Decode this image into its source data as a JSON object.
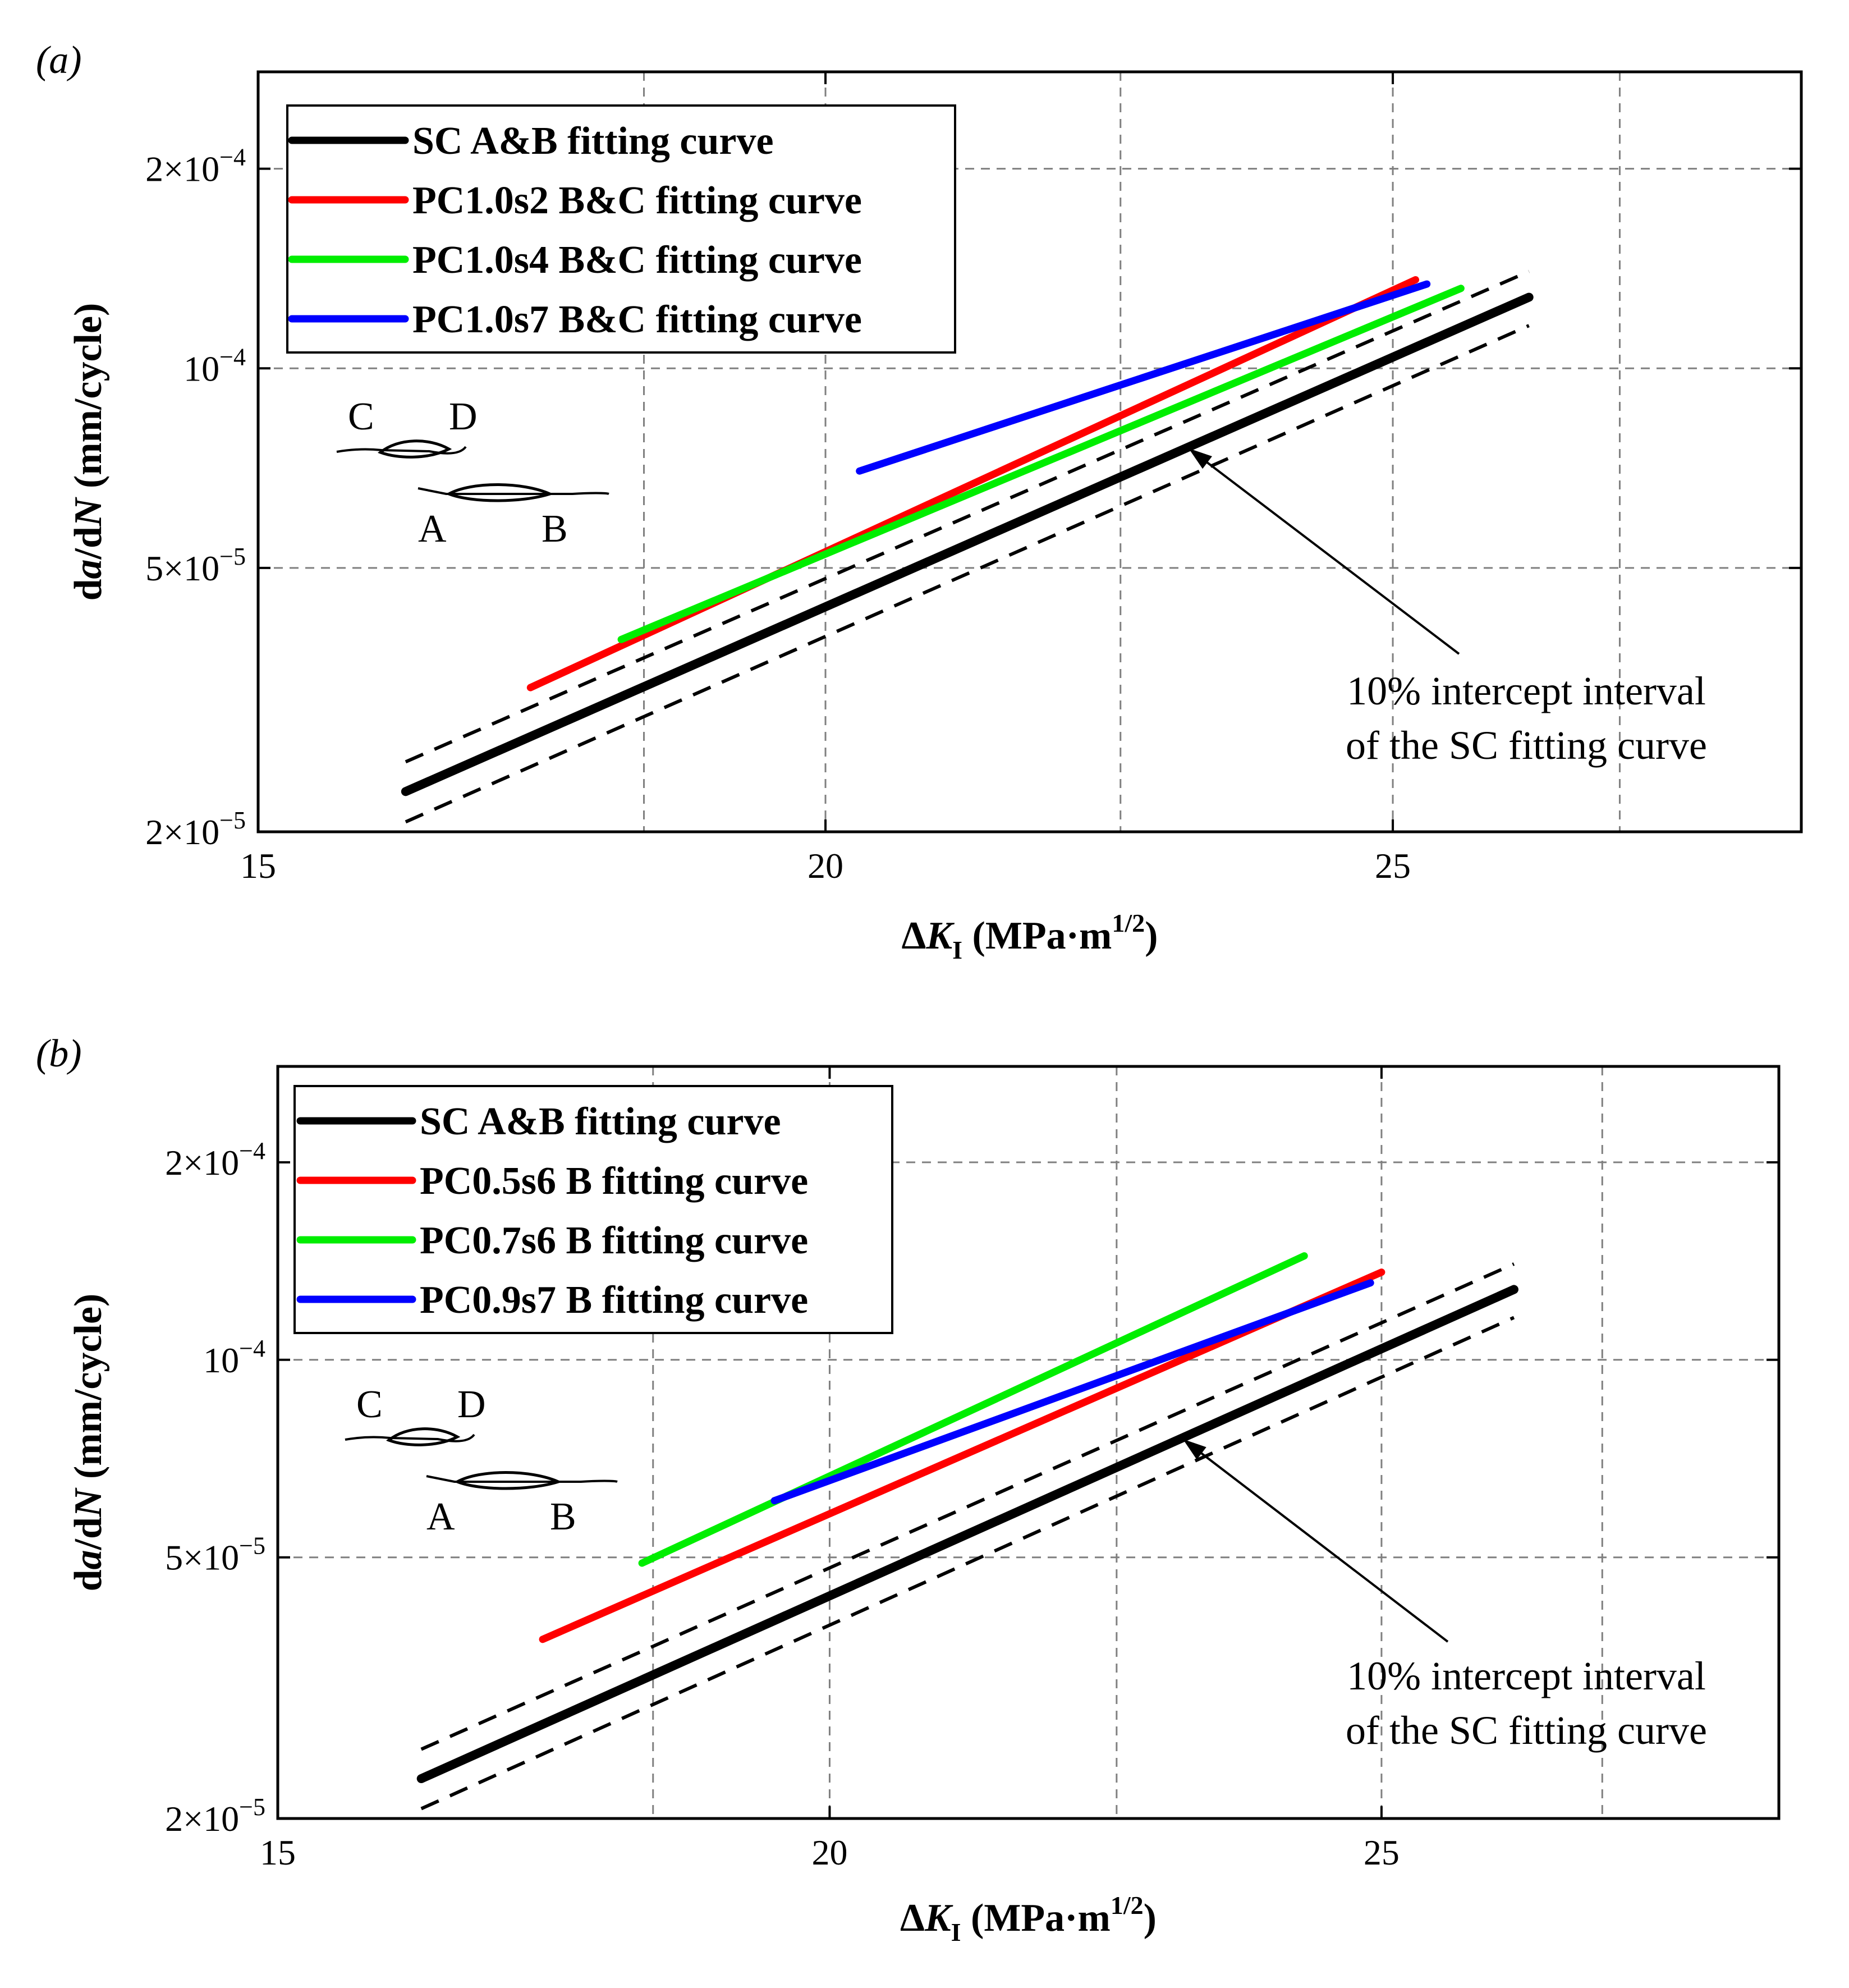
{
  "figure": {
    "panels": [
      "a",
      "b"
    ]
  },
  "chart_data": [
    {
      "panel": "a",
      "panel_label": "(a)",
      "type": "line",
      "xscale": "linear",
      "yscale": "log",
      "xlim": [
        15,
        28.6
      ],
      "ylim": [
        2e-05,
        0.00028
      ],
      "xticks": [
        15,
        20,
        25
      ],
      "xtick_labels": [
        "15",
        "20",
        "25"
      ],
      "yticks": [
        2e-05,
        5e-05,
        0.0001,
        0.0002
      ],
      "ytick_labels": [
        {
          "base": "2×10",
          "exp": "−5"
        },
        {
          "base": "5×10",
          "exp": "−5"
        },
        {
          "base": "10",
          "exp": "−4"
        },
        {
          "base": "2×10",
          "exp": "−4"
        }
      ],
      "xgrid": [
        18.4,
        20,
        22.6,
        25,
        27
      ],
      "ygrid": [
        5e-05,
        0.0001,
        0.0002
      ],
      "xlabel": {
        "prefix": "Δ",
        "var": "K",
        "sub": "I",
        "units": " (MPa·m",
        "sup": "1/2",
        "close": ")"
      },
      "ylabel": {
        "d1": "d",
        "v1": "a",
        "mid": "/d",
        "v2": "N",
        "units": " (mm/cycle)"
      },
      "legend_position": "top-left",
      "series": [
        {
          "name": "SC A&B fitting curve",
          "color": "#000000",
          "x": [
            16.3,
            26.2
          ],
          "y": [
            2.3e-05,
            0.000128
          ]
        },
        {
          "name": "PC1.0s2 B&C fitting curve",
          "color": "#ff0000",
          "x": [
            17.4,
            25.2
          ],
          "y": [
            3.3e-05,
            0.000136
          ]
        },
        {
          "name": "PC1.0s4 B&C fitting curve",
          "color": "#00ee00",
          "x": [
            18.2,
            25.6
          ],
          "y": [
            3.9e-05,
            0.000132
          ]
        },
        {
          "name": "PC1.0s7 B&C fitting curve",
          "color": "#0000ff",
          "x": [
            20.3,
            25.3
          ],
          "y": [
            7e-05,
            0.000134
          ]
        }
      ],
      "interval": {
        "color": "#000000",
        "upper": {
          "x": [
            16.3,
            26.2
          ],
          "y": [
            2.55e-05,
            0.00014
          ]
        },
        "lower": {
          "x": [
            16.3,
            26.2
          ],
          "y": [
            2.07e-05,
            0.000116
          ]
        }
      },
      "annotation": {
        "lines": [
          "10% intercept interval",
          "of the SC fitting curve"
        ],
        "arrow_to": [
          23.2,
          7.8e-05
        ]
      },
      "inset_labels": [
        "C",
        "D",
        "A",
        "B"
      ]
    },
    {
      "panel": "b",
      "panel_label": "(b)",
      "type": "line",
      "xscale": "linear",
      "yscale": "log",
      "xlim": [
        15,
        28.6
      ],
      "ylim": [
        2e-05,
        0.00028
      ],
      "xticks": [
        15,
        20,
        25
      ],
      "xtick_labels": [
        "15",
        "20",
        "25"
      ],
      "yticks": [
        2e-05,
        5e-05,
        0.0001,
        0.0002
      ],
      "ytick_labels": [
        {
          "base": "2×10",
          "exp": "−5"
        },
        {
          "base": "5×10",
          "exp": "−5"
        },
        {
          "base": "10",
          "exp": "−4"
        },
        {
          "base": "2×10",
          "exp": "−4"
        }
      ],
      "xgrid": [
        18.4,
        20,
        22.6,
        25,
        27
      ],
      "ygrid": [
        5e-05,
        0.0001,
        0.0002
      ],
      "xlabel": {
        "prefix": "Δ",
        "var": "K",
        "sub": "I",
        "units": " (MPa·m",
        "sup": "1/2",
        "close": ")"
      },
      "ylabel": {
        "d1": "d",
        "v1": "a",
        "mid": "/d",
        "v2": "N",
        "units": " (mm/cycle)"
      },
      "legend_position": "top-left",
      "series": [
        {
          "name": "SC A&B fitting curve",
          "color": "#000000",
          "x": [
            16.3,
            26.2
          ],
          "y": [
            2.3e-05,
            0.000128
          ]
        },
        {
          "name": "PC0.5s6 B fitting curve",
          "color": "#ff0000",
          "x": [
            17.4,
            25.0
          ],
          "y": [
            3.75e-05,
            0.000136
          ]
        },
        {
          "name": "PC0.7s6 B fitting curve",
          "color": "#00ee00",
          "x": [
            18.3,
            24.3
          ],
          "y": [
            4.9e-05,
            0.000144
          ]
        },
        {
          "name": "PC0.9s7 B fitting curve",
          "color": "#0000ff",
          "x": [
            19.5,
            24.9
          ],
          "y": [
            6.1e-05,
            0.000131
          ]
        }
      ],
      "interval": {
        "color": "#000000",
        "upper": {
          "x": [
            16.3,
            26.2
          ],
          "y": [
            2.55e-05,
            0.00014
          ]
        },
        "lower": {
          "x": [
            16.3,
            26.2
          ],
          "y": [
            2.07e-05,
            0.000116
          ]
        }
      },
      "annotation": {
        "lines": [
          "10% intercept interval",
          "of the SC fitting curve"
        ],
        "arrow_to": [
          23.2,
          7.8e-05
        ]
      },
      "inset_labels": [
        "C",
        "D",
        "A",
        "B"
      ]
    }
  ]
}
